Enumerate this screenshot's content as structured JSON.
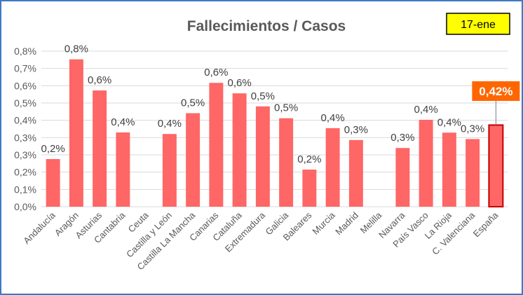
{
  "chart_data": {
    "type": "bar",
    "title": "Fallecimientos / Casos",
    "date_badge": "17-ene",
    "categories": [
      "Andalucía",
      "Aragón",
      "Asturias",
      "Cantabria",
      "Ceuta",
      "Castilla y León",
      "Castilla La Mancha",
      "Canarias",
      "Cataluña",
      "Extremadura",
      "Galicia",
      "Baleares",
      "Murcia",
      "Madrid",
      "Melilla",
      "Navarra",
      "País Vasco",
      "La Rioja",
      "C. Valenciana",
      "España"
    ],
    "values": [
      0.245,
      0.758,
      0.598,
      0.382,
      0,
      0.374,
      0.481,
      0.637,
      0.583,
      0.516,
      0.455,
      0.191,
      0.404,
      0.343,
      0,
      0.302,
      0.447,
      0.381,
      0.348,
      0.42
    ],
    "data_labels": [
      "0,2%",
      "0,8%",
      "0,6%",
      "0,4%",
      "",
      "0,4%",
      "0,5%",
      "0,6%",
      "0,6%",
      "0,5%",
      "0,5%",
      "0,2%",
      "0,4%",
      "0,3%",
      "",
      "0,3%",
      "0,4%",
      "0,4%",
      "0,3%",
      "0,42%"
    ],
    "highlight_index": 19,
    "y_ticks": [
      "0,0%",
      "0,1%",
      "0,2%",
      "0,3%",
      "0,3%",
      "0,4%",
      "0,5%",
      "0,6%",
      "0,7%",
      "0,8%"
    ],
    "ylim": [
      0,
      0.8
    ],
    "grid": true,
    "colors": {
      "bar": "#ff6666",
      "highlight_border": "#c00000",
      "highlight_label_bg": "#ff6600",
      "badge_bg": "#ffff00",
      "grid": "#d9d9d9"
    }
  }
}
